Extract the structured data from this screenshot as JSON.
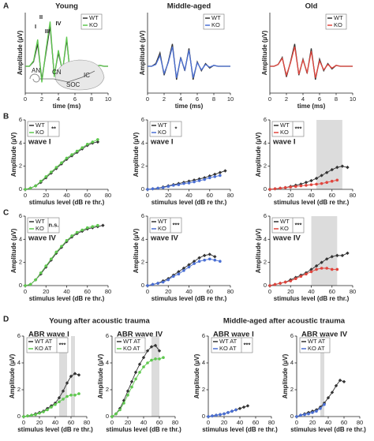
{
  "figure_letters": [
    "A",
    "B",
    "C",
    "D"
  ],
  "section_titles": [
    "Young after acoustic trauma",
    "Middle-aged after acoustic trauma"
  ],
  "peak_labels": [
    "I",
    "II",
    "III",
    "IV"
  ],
  "inset_labels": [
    "AN",
    "CN",
    "SOC",
    "IC"
  ],
  "chart_data": [
    {
      "type": "waveform",
      "title": "Young",
      "xlabel": "time (ms)",
      "ylabel": "Amplitude (µV)",
      "x": [
        0,
        0.5,
        1,
        1.5,
        2,
        2.5,
        3,
        3.5,
        4,
        4.5,
        5,
        5.5,
        6,
        6.5,
        7,
        7.5,
        8,
        8.5,
        9,
        9.5,
        10
      ],
      "xlim": [
        0,
        10
      ],
      "xticks": [
        0,
        2,
        4,
        6,
        8,
        10
      ],
      "ylim": [
        -3,
        6
      ],
      "series": [
        {
          "name": "WT",
          "color": "#333333",
          "values": [
            0,
            0,
            0.5,
            2.5,
            -1.5,
            1.5,
            4.5,
            -1,
            1.5,
            -0.5,
            3,
            -1.5,
            0.5,
            -0.5,
            0.3,
            0,
            0.2,
            0,
            0.1,
            0,
            0
          ]
        },
        {
          "name": "KO",
          "color": "#5ec84e",
          "values": [
            0,
            0,
            0.6,
            3,
            -1.8,
            1.8,
            5,
            -1.2,
            1.8,
            -0.6,
            3.3,
            -1.8,
            0.5,
            -0.6,
            0.3,
            0,
            0.2,
            0,
            0.1,
            0,
            0
          ]
        }
      ]
    },
    {
      "type": "waveform",
      "title": "Middle-aged",
      "xlabel": "time (ms)",
      "ylabel": "Amplitude (µV)",
      "x": [
        0,
        0.5,
        1,
        1.5,
        2,
        2.5,
        3,
        3.5,
        4,
        4.5,
        5,
        5.5,
        6,
        6.5,
        7,
        7.5,
        8,
        8.5,
        9,
        9.5,
        10
      ],
      "xlim": [
        0,
        10
      ],
      "xticks": [
        0,
        2,
        4,
        6,
        8,
        10
      ],
      "ylim": [
        -3,
        6
      ],
      "series": [
        {
          "name": "WT",
          "color": "#333333",
          "values": [
            0,
            0,
            0.3,
            1.5,
            -1,
            0.5,
            2.5,
            -1.5,
            1,
            -0.5,
            2,
            -1.5,
            0.5,
            -0.5,
            0.3,
            -0.2,
            0.1,
            0,
            0,
            0,
            0
          ]
        },
        {
          "name": "KO",
          "color": "#4a6fd4",
          "values": [
            0,
            0,
            0.2,
            1.2,
            -0.8,
            0.4,
            2.2,
            -1.3,
            0.9,
            -0.4,
            1.8,
            -1.3,
            0.4,
            -0.4,
            0.2,
            -0.1,
            0.1,
            0,
            0,
            0,
            0
          ]
        }
      ]
    },
    {
      "type": "waveform",
      "title": "Old",
      "xlabel": "time (ms)",
      "ylabel": "Amplitude (µV)",
      "x": [
        0,
        0.5,
        1,
        1.5,
        2,
        2.5,
        3,
        3.5,
        4,
        4.5,
        5,
        5.5,
        6,
        6.5,
        7,
        7.5,
        8,
        8.5,
        9,
        9.5,
        10
      ],
      "xlim": [
        0,
        10
      ],
      "xticks": [
        0,
        2,
        4,
        6,
        8,
        10
      ],
      "ylim": [
        -3,
        6
      ],
      "series": [
        {
          "name": "WT",
          "color": "#333333",
          "values": [
            0,
            0,
            0.2,
            1,
            -1.2,
            0.5,
            2.5,
            -1,
            0.8,
            -0.8,
            2,
            -1.5,
            0.8,
            -0.5,
            0.3,
            -0.3,
            0.1,
            0,
            0,
            0,
            0
          ]
        },
        {
          "name": "KO",
          "color": "#e0453d",
          "values": [
            0,
            0,
            0.2,
            0.9,
            -1,
            0.4,
            2.2,
            -0.9,
            0.7,
            -0.7,
            1.7,
            -1.3,
            0.6,
            -0.4,
            0.2,
            -0.2,
            0.1,
            0,
            0,
            0,
            0
          ]
        }
      ]
    },
    {
      "type": "line",
      "title": "wave I",
      "significance": "**",
      "xlabel": "stimulus level (dB re thr.)",
      "ylabel": "Amplitude (µV)",
      "x": [
        0,
        5,
        10,
        15,
        20,
        25,
        30,
        35,
        40,
        45,
        50,
        55,
        60,
        65,
        70,
        75,
        80
      ],
      "xlim": [
        0,
        80
      ],
      "xticks": [
        0,
        20,
        40,
        60,
        80
      ],
      "ylim": [
        0,
        6
      ],
      "yticks": [
        0,
        2,
        4,
        6
      ],
      "series": [
        {
          "name": "WT",
          "color": "#333333",
          "values": [
            0,
            0.1,
            0.3,
            0.6,
            1.0,
            1.4,
            1.8,
            2.2,
            2.6,
            2.9,
            3.2,
            3.5,
            3.8,
            4.0,
            4.1,
            null,
            null
          ]
        },
        {
          "name": "KO",
          "color": "#5ec84e",
          "values": [
            0,
            0.1,
            0.3,
            0.7,
            1.1,
            1.5,
            1.9,
            2.3,
            2.7,
            3.0,
            3.3,
            3.6,
            3.9,
            4.1,
            4.3,
            null,
            null
          ]
        }
      ]
    },
    {
      "type": "line",
      "title": "wave I",
      "significance": "*",
      "xlabel": "stimulus level (dB re thr.)",
      "ylabel": "Amplitude (µV)",
      "x": [
        0,
        5,
        10,
        15,
        20,
        25,
        30,
        35,
        40,
        45,
        50,
        55,
        60,
        65,
        70,
        75,
        80
      ],
      "xlim": [
        0,
        80
      ],
      "xticks": [
        0,
        20,
        40,
        60,
        80
      ],
      "ylim": [
        0,
        6
      ],
      "yticks": [
        0,
        2,
        4,
        6
      ],
      "series": [
        {
          "name": "WT",
          "color": "#333333",
          "values": [
            0,
            0.05,
            0.1,
            0.2,
            0.3,
            0.4,
            0.5,
            0.6,
            0.7,
            0.8,
            0.9,
            1.0,
            1.15,
            1.3,
            1.45,
            1.6,
            null
          ]
        },
        {
          "name": "KO",
          "color": "#4a6fd4",
          "values": [
            0,
            0.05,
            0.1,
            0.15,
            0.25,
            0.35,
            0.4,
            0.5,
            0.55,
            0.65,
            0.75,
            0.85,
            1.0,
            1.1,
            1.2,
            null,
            null
          ]
        }
      ]
    },
    {
      "type": "line",
      "title": "wave I",
      "significance": "***",
      "xlabel": "stimulus level (dB re thr.)",
      "ylabel": "Amplitude (µV)",
      "x": [
        0,
        5,
        10,
        15,
        20,
        25,
        30,
        35,
        40,
        45,
        50,
        55,
        60,
        65,
        70,
        75,
        80
      ],
      "xlim": [
        0,
        80
      ],
      "xticks": [
        0,
        20,
        40,
        60,
        80
      ],
      "ylim": [
        0,
        6
      ],
      "yticks": [
        0,
        2,
        4,
        6
      ],
      "highlight": [
        [
          45,
          70
        ]
      ],
      "series": [
        {
          "name": "WT",
          "color": "#333333",
          "values": [
            0,
            0.05,
            0.1,
            0.15,
            0.25,
            0.35,
            0.45,
            0.6,
            0.75,
            0.95,
            1.2,
            1.45,
            1.7,
            1.9,
            2.0,
            1.9,
            null
          ]
        },
        {
          "name": "KO",
          "color": "#e0453d",
          "values": [
            0,
            0.05,
            0.1,
            0.15,
            0.2,
            0.25,
            0.3,
            0.35,
            0.4,
            0.45,
            0.5,
            0.6,
            0.7,
            0.8,
            null,
            null,
            null
          ]
        }
      ]
    },
    {
      "type": "line",
      "title": "wave IV",
      "significance": "n.s.",
      "xlabel": "stimulus level (dB re thr.)",
      "ylabel": "Amplitude (µV)",
      "x": [
        0,
        5,
        10,
        15,
        20,
        25,
        30,
        35,
        40,
        45,
        50,
        55,
        60,
        65,
        70,
        75,
        80
      ],
      "xlim": [
        0,
        80
      ],
      "xticks": [
        0,
        20,
        40,
        60,
        80
      ],
      "ylim": [
        0,
        6
      ],
      "yticks": [
        0,
        2,
        4,
        6
      ],
      "series": [
        {
          "name": "WT",
          "color": "#333333",
          "values": [
            0,
            0.1,
            0.5,
            1.0,
            1.6,
            2.2,
            2.8,
            3.3,
            3.8,
            4.2,
            4.5,
            4.7,
            4.9,
            5.0,
            5.1,
            5.2,
            null
          ]
        },
        {
          "name": "KO",
          "color": "#5ec84e",
          "values": [
            0,
            0.1,
            0.5,
            1.1,
            1.7,
            2.3,
            2.9,
            3.4,
            3.9,
            4.3,
            4.6,
            4.8,
            5.0,
            5.1,
            5.2,
            null,
            null
          ]
        }
      ]
    },
    {
      "type": "line",
      "title": "wave IV",
      "significance": "***",
      "xlabel": "stimulus level (dB re thr.)",
      "ylabel": "Amplitude (µV)",
      "x": [
        0,
        5,
        10,
        15,
        20,
        25,
        30,
        35,
        40,
        45,
        50,
        55,
        60,
        65,
        70,
        75,
        80
      ],
      "xlim": [
        0,
        80
      ],
      "xticks": [
        0,
        20,
        40,
        60,
        80
      ],
      "ylim": [
        0,
        6
      ],
      "yticks": [
        0,
        2,
        4,
        6
      ],
      "series": [
        {
          "name": "WT",
          "color": "#333333",
          "values": [
            0,
            0.1,
            0.2,
            0.4,
            0.6,
            0.9,
            1.2,
            1.5,
            1.8,
            2.1,
            2.4,
            2.6,
            2.7,
            2.5,
            null,
            null,
            null
          ]
        },
        {
          "name": "KO",
          "color": "#4a6fd4",
          "values": [
            0,
            0.1,
            0.2,
            0.3,
            0.5,
            0.8,
            1.0,
            1.3,
            1.6,
            1.9,
            2.1,
            2.2,
            2.3,
            2.2,
            2.1,
            null,
            null
          ]
        }
      ]
    },
    {
      "type": "line",
      "title": "wave IV",
      "significance": "***",
      "xlabel": "stimulus level (dB re thr.)",
      "ylabel": "Amplitude (µV)",
      "x": [
        0,
        5,
        10,
        15,
        20,
        25,
        30,
        35,
        40,
        45,
        50,
        55,
        60,
        65,
        70,
        75,
        80
      ],
      "xlim": [
        0,
        80
      ],
      "xticks": [
        0,
        20,
        40,
        60,
        80
      ],
      "ylim": [
        0,
        6
      ],
      "yticks": [
        0,
        2,
        4,
        6
      ],
      "highlight": [
        [
          40,
          65
        ]
      ],
      "series": [
        {
          "name": "WT",
          "color": "#333333",
          "values": [
            0,
            0.1,
            0.2,
            0.3,
            0.5,
            0.7,
            0.9,
            1.1,
            1.4,
            1.7,
            2.0,
            2.3,
            2.5,
            2.6,
            2.6,
            2.8,
            null
          ]
        },
        {
          "name": "KO",
          "color": "#e0453d",
          "values": [
            0,
            0.1,
            0.2,
            0.3,
            0.4,
            0.6,
            0.8,
            1.0,
            1.2,
            1.4,
            1.5,
            1.5,
            1.4,
            1.4,
            null,
            null,
            null
          ]
        }
      ]
    },
    {
      "type": "line",
      "title": "ABR wave I",
      "significance": "***",
      "xlabel": "stimulus level (dB re thr.)",
      "ylabel": "Amplitude (µV)",
      "x": [
        0,
        5,
        10,
        15,
        20,
        25,
        30,
        35,
        40,
        45,
        50,
        55,
        60,
        65,
        70,
        75,
        80
      ],
      "xlim": [
        0,
        80
      ],
      "xticks": [
        0,
        20,
        40,
        60,
        80
      ],
      "ylim": [
        0,
        6
      ],
      "yticks": [
        0,
        2,
        4,
        6
      ],
      "highlight": [
        [
          45,
          55
        ],
        [
          60,
          65
        ]
      ],
      "series": [
        {
          "name": "WT AT",
          "color": "#333333",
          "values": [
            0,
            0.05,
            0.1,
            0.2,
            0.3,
            0.4,
            0.6,
            0.8,
            1.0,
            1.4,
            1.9,
            2.5,
            3.0,
            3.2,
            3.1,
            null,
            null
          ]
        },
        {
          "name": "KO AT",
          "color": "#5ec84e",
          "values": [
            0,
            0.05,
            0.1,
            0.15,
            0.25,
            0.35,
            0.5,
            0.7,
            0.9,
            1.1,
            1.3,
            1.5,
            1.6,
            1.6,
            1.7,
            null,
            null
          ]
        }
      ]
    },
    {
      "type": "line",
      "title": "ABR wave IV",
      "xlabel": "stimulus level (dB re thr.)",
      "ylabel": "Amplitude (µV)",
      "x": [
        0,
        5,
        10,
        15,
        20,
        25,
        30,
        35,
        40,
        45,
        50,
        55,
        60,
        65,
        70,
        75,
        80
      ],
      "xlim": [
        0,
        80
      ],
      "xticks": [
        0,
        20,
        40,
        60,
        80
      ],
      "ylim": [
        0,
        6
      ],
      "yticks": [
        0,
        2,
        4,
        6
      ],
      "highlight": [
        [
          50,
          60
        ]
      ],
      "series": [
        {
          "name": "WT AT",
          "color": "#333333",
          "values": [
            0,
            0.2,
            0.6,
            1.2,
            1.9,
            2.6,
            3.3,
            3.9,
            4.4,
            4.9,
            5.2,
            5.3,
            4.9,
            null,
            null,
            null,
            null
          ]
        },
        {
          "name": "KO AT",
          "color": "#5ec84e",
          "values": [
            0,
            0.2,
            0.5,
            1.0,
            1.6,
            2.2,
            2.8,
            3.3,
            3.7,
            4.0,
            4.2,
            4.3,
            4.3,
            4.4,
            null,
            null,
            null
          ]
        }
      ]
    },
    {
      "type": "line",
      "title": "ABR wave I",
      "significance": "***",
      "xlabel": "stimulus level (dB re thr.)",
      "ylabel": "Amplitude (µV)",
      "x": [
        0,
        5,
        10,
        15,
        20,
        25,
        30,
        35,
        40,
        45,
        50,
        55,
        60,
        65,
        70,
        75,
        80
      ],
      "xlim": [
        0,
        80
      ],
      "xticks": [
        0,
        20,
        40,
        60,
        80
      ],
      "ylim": [
        0,
        6
      ],
      "yticks": [
        0,
        2,
        4,
        6
      ],
      "series": [
        {
          "name": "WT AT",
          "color": "#333333",
          "values": [
            0,
            0.05,
            0.1,
            0.15,
            0.2,
            0.3,
            0.4,
            0.5,
            0.6,
            0.7,
            0.8,
            null,
            null,
            null,
            null,
            null,
            null
          ]
        },
        {
          "name": "KO AT",
          "color": "#4a6fd4",
          "values": [
            0,
            0.05,
            0.1,
            0.15,
            0.2,
            0.3,
            0.4,
            0.5,
            null,
            null,
            null,
            null,
            null,
            null,
            null,
            null,
            null
          ]
        }
      ]
    },
    {
      "type": "line",
      "title": "ABR wave IV",
      "xlabel": "stimulus level (dB re thr.)",
      "ylabel": "Amplitude (µV)",
      "x": [
        0,
        5,
        10,
        15,
        20,
        25,
        30,
        35,
        40,
        45,
        50,
        55,
        60,
        65,
        70,
        75,
        80
      ],
      "xlim": [
        0,
        80
      ],
      "xticks": [
        0,
        20,
        40,
        60,
        80
      ],
      "ylim": [
        0,
        6
      ],
      "yticks": [
        0,
        2,
        4,
        6
      ],
      "highlight": [
        [
          30,
          35
        ]
      ],
      "series": [
        {
          "name": "WT AT",
          "color": "#333333",
          "values": [
            0,
            0.1,
            0.2,
            0.3,
            0.4,
            0.5,
            0.7,
            1.0,
            1.4,
            1.8,
            2.3,
            2.7,
            2.6,
            null,
            null,
            null,
            null
          ]
        },
        {
          "name": "KO AT",
          "color": "#4a6fd4",
          "values": [
            0,
            0.1,
            0.15,
            0.2,
            0.3,
            0.4,
            0.6,
            0.9,
            null,
            null,
            null,
            null,
            null,
            null,
            null,
            null,
            null
          ]
        }
      ]
    }
  ]
}
